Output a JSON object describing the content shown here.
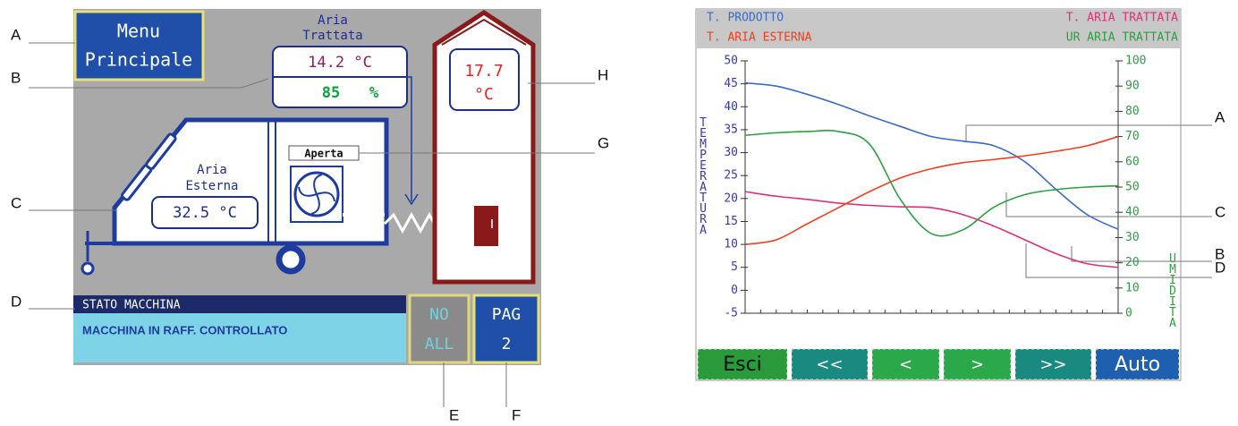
{
  "machine_screen": {
    "menu_button": [
      "Menu",
      "Principale"
    ],
    "treated_air": {
      "title": [
        "Aria",
        "Trattata"
      ],
      "temperature": "14.2 °C",
      "humidity": "85",
      "humidity_unit": "%"
    },
    "external_air": {
      "title": [
        "Aria",
        "Esterna"
      ],
      "temperature": "32.5 °C"
    },
    "door_status": "Aperta",
    "cell_temperature": [
      "17.7",
      "°C"
    ],
    "status": {
      "header": "STATO MACCHINA",
      "message": "MACCHINA IN RAFF. CONTROLLATO"
    },
    "alarm_button": [
      "NO",
      "ALL"
    ],
    "page_button": [
      "PAG",
      "2"
    ]
  },
  "machine_callouts": [
    "A",
    "B",
    "C",
    "D",
    "E",
    "F",
    "G",
    "H"
  ],
  "chart_data": {
    "type": "line",
    "categories": [
      null,
      null,
      null,
      null,
      null,
      null,
      null,
      null,
      null,
      null,
      null,
      null,
      null
    ],
    "series": [
      {
        "name": "T. PRODOTTO",
        "color": "#3a6bc9",
        "values": [
          45.2,
          44.5,
          42.7,
          40.5,
          38,
          35.7,
          33.5,
          32.5,
          31.5,
          28,
          22,
          16.5,
          13.3
        ]
      },
      {
        "name": "T. ARIA TRATTATA",
        "color": "#e0307a",
        "values": [
          21.5,
          20.5,
          19.8,
          19,
          18.5,
          18.2,
          18,
          16.5,
          14,
          11,
          8,
          5.8,
          5
        ]
      },
      {
        "name": "T. ARIA ESTERNA",
        "color": "#f04020",
        "values": [
          10,
          11,
          14.5,
          18,
          21.5,
          24.5,
          26.5,
          27.8,
          28.5,
          29.3,
          30.3,
          31.5,
          33.5
        ]
      },
      {
        "name": "UR ARIA TRATTATA",
        "color": "#2aa040",
        "axis": "y2",
        "values": [
          70.5,
          71.5,
          72,
          72,
          67,
          45,
          31.5,
          33,
          42,
          47,
          49,
          50,
          50.5
        ]
      }
    ],
    "ylabel": "TEMPERATURA",
    "y2label": "UMIDITA",
    "ylim": [
      -5,
      50
    ],
    "yticks": [
      -5,
      0,
      5,
      10,
      15,
      20,
      25,
      30,
      35,
      40,
      45,
      50
    ],
    "y2lim": [
      0,
      100
    ],
    "y2ticks": [
      0,
      10,
      20,
      30,
      40,
      50,
      60,
      70,
      80,
      90,
      100
    ]
  },
  "chart_callouts": [
    "A",
    "B",
    "C",
    "D"
  ],
  "trend_controls": [
    "Esci",
    "<<",
    "<",
    ">",
    ">>",
    "Auto"
  ]
}
